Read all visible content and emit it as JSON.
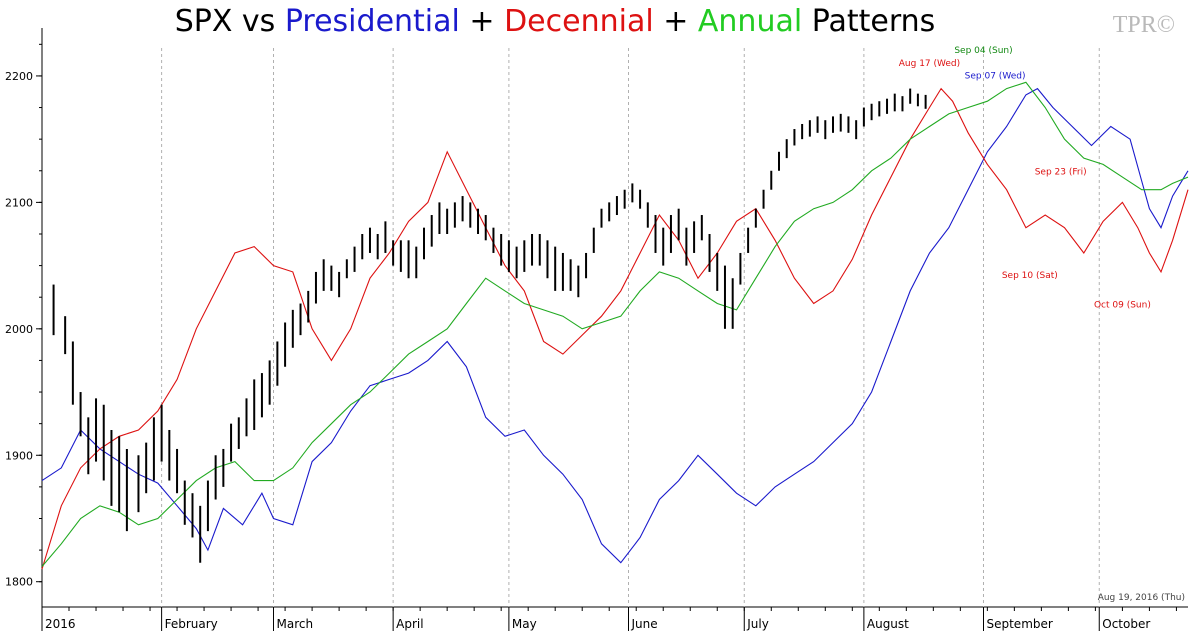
{
  "title_parts": [
    {
      "text": "SPX vs ",
      "color": "#000000"
    },
    {
      "text": "Presidential",
      "color": "#1a1acc"
    },
    {
      "text": " + ",
      "color": "#000000"
    },
    {
      "text": "Decennial",
      "color": "#dd1111"
    },
    {
      "text": " + ",
      "color": "#000000"
    },
    {
      "text": "Annual",
      "color": "#22cc22"
    },
    {
      "text": " Patterns",
      "color": "#000000"
    }
  ],
  "logo": "TPR©",
  "footnote": "Aug 19, 2016 (Thu)",
  "chart_data": {
    "type": "line",
    "ylim": [
      1780,
      2230
    ],
    "yticks": [
      1800,
      1900,
      2000,
      2100,
      2200
    ],
    "grid": false,
    "xlim_days": [
      0,
      297
    ],
    "months": [
      "2016",
      "February",
      "March",
      "April",
      "May",
      "June",
      "July",
      "August",
      "September",
      "October"
    ],
    "month_start_days": [
      0,
      31,
      60,
      91,
      121,
      152,
      182,
      213,
      244,
      274
    ],
    "colors": {
      "spx": "#000000",
      "presidential": "#1a1acc",
      "decennial": "#dd1111",
      "annual": "#22aa22"
    },
    "spx_ohlc_sampled": [
      [
        3,
        2035,
        1995
      ],
      [
        6,
        2010,
        1980
      ],
      [
        8,
        1990,
        1940
      ],
      [
        10,
        1950,
        1915
      ],
      [
        12,
        1930,
        1885
      ],
      [
        14,
        1945,
        1895
      ],
      [
        16,
        1940,
        1880
      ],
      [
        18,
        1920,
        1860
      ],
      [
        20,
        1915,
        1855
      ],
      [
        22,
        1905,
        1840
      ],
      [
        25,
        1900,
        1855
      ],
      [
        27,
        1910,
        1870
      ],
      [
        29,
        1930,
        1880
      ],
      [
        31,
        1940,
        1895
      ],
      [
        33,
        1920,
        1880
      ],
      [
        35,
        1905,
        1870
      ],
      [
        37,
        1880,
        1845
      ],
      [
        39,
        1870,
        1835
      ],
      [
        41,
        1860,
        1815
      ],
      [
        43,
        1880,
        1840
      ],
      [
        45,
        1900,
        1865
      ],
      [
        47,
        1905,
        1875
      ],
      [
        49,
        1925,
        1895
      ],
      [
        51,
        1930,
        1905
      ],
      [
        53,
        1945,
        1915
      ],
      [
        55,
        1960,
        1920
      ],
      [
        57,
        1965,
        1930
      ],
      [
        59,
        1975,
        1940
      ],
      [
        61,
        1990,
        1955
      ],
      [
        63,
        2005,
        1970
      ],
      [
        65,
        2015,
        1985
      ],
      [
        67,
        2020,
        1995
      ],
      [
        69,
        2030,
        2005
      ],
      [
        71,
        2045,
        2020
      ],
      [
        73,
        2055,
        2030
      ],
      [
        75,
        2050,
        2030
      ],
      [
        77,
        2045,
        2025
      ],
      [
        79,
        2055,
        2040
      ],
      [
        81,
        2065,
        2045
      ],
      [
        83,
        2075,
        2055
      ],
      [
        85,
        2080,
        2060
      ],
      [
        87,
        2075,
        2055
      ],
      [
        89,
        2085,
        2060
      ],
      [
        91,
        2070,
        2050
      ],
      [
        93,
        2070,
        2045
      ],
      [
        95,
        2070,
        2040
      ],
      [
        97,
        2065,
        2040
      ],
      [
        99,
        2080,
        2055
      ],
      [
        101,
        2090,
        2065
      ],
      [
        103,
        2100,
        2075
      ],
      [
        105,
        2095,
        2075
      ],
      [
        107,
        2100,
        2080
      ],
      [
        109,
        2105,
        2085
      ],
      [
        111,
        2100,
        2080
      ],
      [
        113,
        2095,
        2075
      ],
      [
        115,
        2090,
        2070
      ],
      [
        117,
        2080,
        2060
      ],
      [
        119,
        2075,
        2050
      ],
      [
        121,
        2070,
        2045
      ],
      [
        123,
        2065,
        2040
      ],
      [
        125,
        2070,
        2045
      ],
      [
        127,
        2075,
        2050
      ],
      [
        129,
        2075,
        2050
      ],
      [
        131,
        2070,
        2040
      ],
      [
        133,
        2065,
        2030
      ],
      [
        135,
        2060,
        2030
      ],
      [
        137,
        2055,
        2030
      ],
      [
        139,
        2050,
        2025
      ],
      [
        141,
        2060,
        2040
      ],
      [
        143,
        2080,
        2060
      ],
      [
        145,
        2095,
        2080
      ],
      [
        147,
        2100,
        2085
      ],
      [
        149,
        2105,
        2090
      ],
      [
        151,
        2110,
        2095
      ],
      [
        153,
        2115,
        2100
      ],
      [
        155,
        2110,
        2095
      ],
      [
        157,
        2100,
        2080
      ],
      [
        159,
        2090,
        2060
      ],
      [
        161,
        2080,
        2050
      ],
      [
        163,
        2090,
        2060
      ],
      [
        165,
        2095,
        2070
      ],
      [
        167,
        2080,
        2050
      ],
      [
        169,
        2085,
        2060
      ],
      [
        171,
        2090,
        2070
      ],
      [
        173,
        2075,
        2045
      ],
      [
        175,
        2060,
        2030
      ],
      [
        177,
        2050,
        2000
      ],
      [
        179,
        2040,
        2000
      ],
      [
        181,
        2060,
        2035
      ],
      [
        183,
        2080,
        2060
      ],
      [
        185,
        2095,
        2080
      ],
      [
        187,
        2110,
        2095
      ],
      [
        189,
        2125,
        2110
      ],
      [
        191,
        2140,
        2125
      ],
      [
        193,
        2150,
        2135
      ],
      [
        195,
        2158,
        2145
      ],
      [
        197,
        2162,
        2150
      ],
      [
        199,
        2165,
        2152
      ],
      [
        201,
        2168,
        2155
      ],
      [
        203,
        2165,
        2150
      ],
      [
        205,
        2168,
        2155
      ],
      [
        207,
        2170,
        2156
      ],
      [
        209,
        2168,
        2155
      ],
      [
        211,
        2165,
        2150
      ],
      [
        213,
        2175,
        2160
      ],
      [
        215,
        2178,
        2165
      ],
      [
        217,
        2180,
        2168
      ],
      [
        219,
        2182,
        2170
      ],
      [
        221,
        2186,
        2172
      ],
      [
        223,
        2184,
        2172
      ],
      [
        225,
        2190,
        2178
      ],
      [
        227,
        2186,
        2176
      ],
      [
        229,
        2185,
        2174
      ]
    ],
    "series": [
      {
        "name": "Presidential",
        "points": [
          [
            0,
            1880
          ],
          [
            5,
            1890
          ],
          [
            10,
            1920
          ],
          [
            15,
            1905
          ],
          [
            20,
            1895
          ],
          [
            25,
            1885
          ],
          [
            30,
            1878
          ],
          [
            35,
            1860
          ],
          [
            40,
            1842
          ],
          [
            43,
            1825
          ],
          [
            47,
            1858
          ],
          [
            52,
            1845
          ],
          [
            57,
            1870
          ],
          [
            60,
            1850
          ],
          [
            65,
            1845
          ],
          [
            70,
            1895
          ],
          [
            75,
            1910
          ],
          [
            80,
            1935
          ],
          [
            85,
            1955
          ],
          [
            90,
            1960
          ],
          [
            95,
            1965
          ],
          [
            100,
            1975
          ],
          [
            105,
            1990
          ],
          [
            110,
            1970
          ],
          [
            115,
            1930
          ],
          [
            120,
            1915
          ],
          [
            125,
            1920
          ],
          [
            130,
            1900
          ],
          [
            135,
            1885
          ],
          [
            140,
            1865
          ],
          [
            145,
            1830
          ],
          [
            150,
            1815
          ],
          [
            155,
            1835
          ],
          [
            160,
            1865
          ],
          [
            165,
            1880
          ],
          [
            170,
            1900
          ],
          [
            175,
            1885
          ],
          [
            180,
            1870
          ],
          [
            185,
            1860
          ],
          [
            190,
            1875
          ],
          [
            195,
            1885
          ],
          [
            200,
            1895
          ],
          [
            205,
            1910
          ],
          [
            210,
            1925
          ],
          [
            215,
            1950
          ],
          [
            220,
            1990
          ],
          [
            225,
            2030
          ],
          [
            230,
            2060
          ],
          [
            235,
            2080
          ],
          [
            240,
            2110
          ],
          [
            245,
            2140
          ],
          [
            250,
            2160
          ],
          [
            255,
            2185
          ],
          [
            258,
            2190
          ],
          [
            262,
            2175
          ],
          [
            267,
            2160
          ],
          [
            272,
            2145
          ],
          [
            277,
            2160
          ],
          [
            282,
            2150
          ],
          [
            287,
            2095
          ],
          [
            290,
            2080
          ],
          [
            293,
            2105
          ],
          [
            297,
            2125
          ]
        ]
      },
      {
        "name": "Decennial",
        "points": [
          [
            0,
            1810
          ],
          [
            5,
            1860
          ],
          [
            10,
            1890
          ],
          [
            15,
            1905
          ],
          [
            20,
            1915
          ],
          [
            25,
            1920
          ],
          [
            30,
            1935
          ],
          [
            35,
            1960
          ],
          [
            40,
            2000
          ],
          [
            45,
            2030
          ],
          [
            50,
            2060
          ],
          [
            55,
            2065
          ],
          [
            60,
            2050
          ],
          [
            65,
            2045
          ],
          [
            70,
            2000
          ],
          [
            75,
            1975
          ],
          [
            80,
            2000
          ],
          [
            85,
            2040
          ],
          [
            90,
            2060
          ],
          [
            95,
            2085
          ],
          [
            100,
            2100
          ],
          [
            105,
            2140
          ],
          [
            110,
            2110
          ],
          [
            115,
            2080
          ],
          [
            120,
            2050
          ],
          [
            125,
            2030
          ],
          [
            130,
            1990
          ],
          [
            135,
            1980
          ],
          [
            140,
            1995
          ],
          [
            145,
            2010
          ],
          [
            150,
            2030
          ],
          [
            155,
            2060
          ],
          [
            160,
            2090
          ],
          [
            165,
            2070
          ],
          [
            170,
            2040
          ],
          [
            175,
            2060
          ],
          [
            180,
            2085
          ],
          [
            185,
            2095
          ],
          [
            190,
            2070
          ],
          [
            195,
            2040
          ],
          [
            200,
            2020
          ],
          [
            205,
            2030
          ],
          [
            210,
            2055
          ],
          [
            215,
            2090
          ],
          [
            220,
            2120
          ],
          [
            225,
            2150
          ],
          [
            230,
            2175
          ],
          [
            233,
            2190
          ],
          [
            236,
            2180
          ],
          [
            240,
            2155
          ],
          [
            245,
            2130
          ],
          [
            250,
            2110
          ],
          [
            255,
            2080
          ],
          [
            260,
            2090
          ],
          [
            265,
            2080
          ],
          [
            270,
            2060
          ],
          [
            275,
            2085
          ],
          [
            280,
            2100
          ],
          [
            284,
            2080
          ],
          [
            287,
            2060
          ],
          [
            290,
            2045
          ],
          [
            293,
            2070
          ],
          [
            297,
            2110
          ]
        ]
      },
      {
        "name": "Annual",
        "points": [
          [
            0,
            1812
          ],
          [
            5,
            1830
          ],
          [
            10,
            1850
          ],
          [
            15,
            1860
          ],
          [
            20,
            1855
          ],
          [
            25,
            1845
          ],
          [
            30,
            1850
          ],
          [
            35,
            1865
          ],
          [
            40,
            1880
          ],
          [
            45,
            1890
          ],
          [
            50,
            1895
          ],
          [
            55,
            1880
          ],
          [
            60,
            1880
          ],
          [
            65,
            1890
          ],
          [
            70,
            1910
          ],
          [
            75,
            1925
          ],
          [
            80,
            1940
          ],
          [
            85,
            1950
          ],
          [
            90,
            1965
          ],
          [
            95,
            1980
          ],
          [
            100,
            1990
          ],
          [
            105,
            2000
          ],
          [
            110,
            2020
          ],
          [
            115,
            2040
          ],
          [
            120,
            2030
          ],
          [
            125,
            2020
          ],
          [
            130,
            2015
          ],
          [
            135,
            2010
          ],
          [
            140,
            2000
          ],
          [
            145,
            2005
          ],
          [
            150,
            2010
          ],
          [
            155,
            2030
          ],
          [
            160,
            2045
          ],
          [
            165,
            2040
          ],
          [
            170,
            2030
          ],
          [
            175,
            2020
          ],
          [
            180,
            2015
          ],
          [
            185,
            2040
          ],
          [
            190,
            2065
          ],
          [
            195,
            2085
          ],
          [
            200,
            2095
          ],
          [
            205,
            2100
          ],
          [
            210,
            2110
          ],
          [
            215,
            2125
          ],
          [
            220,
            2135
          ],
          [
            225,
            2150
          ],
          [
            230,
            2160
          ],
          [
            235,
            2170
          ],
          [
            240,
            2175
          ],
          [
            245,
            2180
          ],
          [
            250,
            2190
          ],
          [
            255,
            2195
          ],
          [
            260,
            2175
          ],
          [
            265,
            2150
          ],
          [
            270,
            2135
          ],
          [
            275,
            2130
          ],
          [
            280,
            2120
          ],
          [
            285,
            2110
          ],
          [
            290,
            2110
          ],
          [
            293,
            2115
          ],
          [
            297,
            2120
          ]
        ]
      }
    ],
    "annotations": [
      {
        "text": "Aug 17 (Wed)",
        "color": "#dd1111",
        "day": 230,
        "value": 2208
      },
      {
        "text": "Sep 04 (Sun)",
        "color": "#118811",
        "day": 244,
        "value": 2218
      },
      {
        "text": "Sep 07 (Wed)",
        "color": "#1a1acc",
        "day": 247,
        "value": 2198
      },
      {
        "text": "Sep 23 (Fri)",
        "color": "#dd1111",
        "day": 264,
        "value": 2122
      },
      {
        "text": "Sep 10 (Sat)",
        "color": "#dd1111",
        "day": 256,
        "value": 2040
      },
      {
        "text": "Oct 09 (Sun)",
        "color": "#dd1111",
        "day": 280,
        "value": 2017
      }
    ]
  }
}
